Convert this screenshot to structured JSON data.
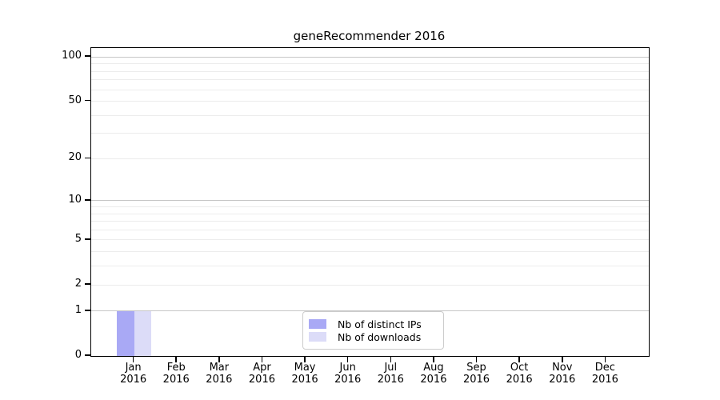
{
  "chart_data": {
    "type": "bar",
    "title": "geneRecommender 2016",
    "categories": [
      "Jan",
      "Feb",
      "Mar",
      "Apr",
      "May",
      "Jun",
      "Jul",
      "Aug",
      "Sep",
      "Oct",
      "Nov",
      "Dec"
    ],
    "category_year": "2016",
    "series": [
      {
        "name": "Nb of distinct IPs",
        "color": "#a9a9f5",
        "values": [
          1,
          0,
          0,
          0,
          0,
          0,
          0,
          0,
          0,
          0,
          0,
          0
        ]
      },
      {
        "name": "Nb of downloads",
        "color": "#dcdcf8",
        "values": [
          1,
          0,
          0,
          0,
          0,
          0,
          0,
          0,
          0,
          0,
          0,
          0
        ]
      }
    ],
    "xlabel": "",
    "ylabel": "",
    "y_scale": "log1p",
    "ylim": [
      0,
      118
    ],
    "y_major_ticks": [
      0,
      1,
      2,
      5,
      10,
      20,
      50,
      100
    ],
    "y_minor_gridlines": [
      3,
      4,
      6,
      7,
      8,
      9,
      30,
      40,
      60,
      70,
      80,
      90
    ],
    "grid": true,
    "legend_position": "lower center"
  },
  "colors": {
    "background": "#ffffff",
    "axis": "#000000",
    "major_grid": "#c6c6c6",
    "minor_grid": "#ececec",
    "legend_border": "#cccccc"
  }
}
